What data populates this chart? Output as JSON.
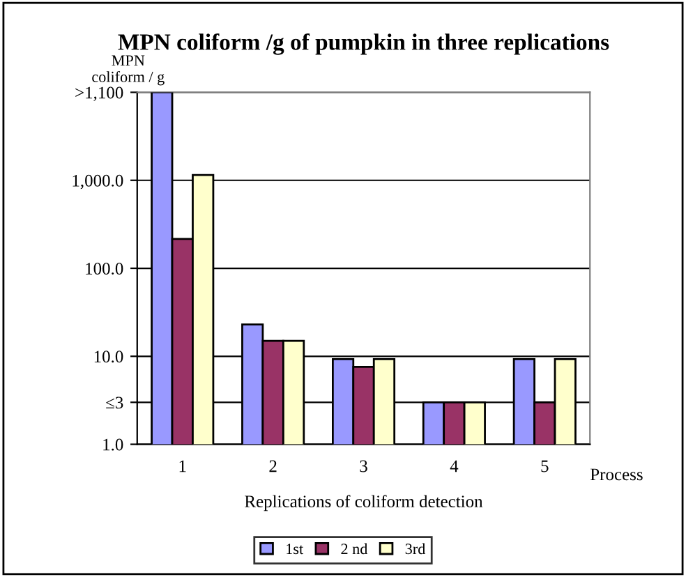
{
  "chart_data": {
    "type": "bar",
    "title": "MPN coliform /g of pumpkin in three replications",
    "xlabel": "Replications of coliform detection",
    "ylabel": "MPN\ncoliform / g",
    "annotations": [
      "Process"
    ],
    "categories": [
      "1",
      "2",
      "3",
      "4",
      "5"
    ],
    "series": [
      {
        "name": "1st",
        "color": "#9999ff",
        "values": [
          10000,
          23,
          9.3,
          3,
          9.3
        ]
      },
      {
        "name": "2 nd",
        "color": "#993366",
        "values": [
          216,
          15,
          7.6,
          3,
          3
        ]
      },
      {
        "name": "3rd",
        "color": "#ffffcc",
        "values": [
          1150,
          15,
          9.3,
          3,
          9.3
        ]
      }
    ],
    "log": "y",
    "ylim": [
      1,
      10000
    ],
    "yticks": [
      {
        "value": 1,
        "label": "1.0"
      },
      {
        "value": 3,
        "label": "≤3"
      },
      {
        "value": 10,
        "label": "10.0"
      },
      {
        "value": 100,
        "label": "100.0"
      },
      {
        "value": 1000,
        "label": "1,000.0"
      },
      {
        "value": 10000,
        "label": ">1,100"
      }
    ],
    "grid": "y",
    "legend": "bottom"
  }
}
